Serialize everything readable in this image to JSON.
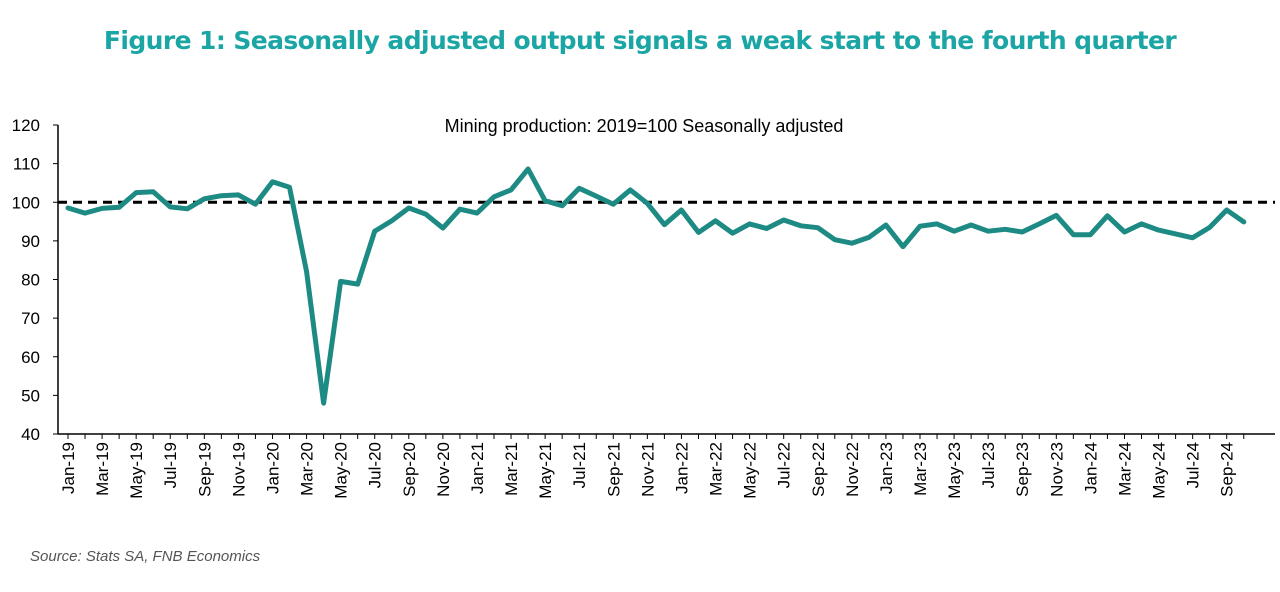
{
  "figure": {
    "title": "Figure 1: Seasonally adjusted output signals a weak start to the fourth quarter",
    "source": "Source: Stats SA, FNB Economics"
  },
  "colors": {
    "title": "#1ba5a5",
    "series": "#1e8a84",
    "reference": "#000000"
  },
  "chart_data": {
    "type": "line",
    "title": "Mining production: 2019=100 Seasonally adjusted",
    "xlabel": "",
    "ylabel": "",
    "ylim": [
      40,
      120
    ],
    "yticks": [
      40,
      50,
      60,
      70,
      80,
      90,
      100,
      110,
      120
    ],
    "grid": false,
    "legend": "none",
    "x": [
      "Jan-19",
      "Feb-19",
      "Mar-19",
      "Apr-19",
      "May-19",
      "Jun-19",
      "Jul-19",
      "Aug-19",
      "Sep-19",
      "Oct-19",
      "Nov-19",
      "Dec-19",
      "Jan-20",
      "Feb-20",
      "Mar-20",
      "Apr-20",
      "May-20",
      "Jun-20",
      "Jul-20",
      "Aug-20",
      "Sep-20",
      "Oct-20",
      "Nov-20",
      "Dec-20",
      "Jan-21",
      "Feb-21",
      "Mar-21",
      "Apr-21",
      "May-21",
      "Jun-21",
      "Jul-21",
      "Aug-21",
      "Sep-21",
      "Oct-21",
      "Nov-21",
      "Dec-21",
      "Jan-22",
      "Feb-22",
      "Mar-22",
      "Apr-22",
      "May-22",
      "Jun-22",
      "Jul-22",
      "Aug-22",
      "Sep-22",
      "Oct-22",
      "Nov-22",
      "Dec-22",
      "Jan-23",
      "Feb-23",
      "Mar-23",
      "Apr-23",
      "May-23",
      "Jun-23",
      "Jul-23",
      "Aug-23",
      "Sep-23",
      "Oct-23",
      "Nov-23",
      "Dec-23",
      "Jan-24",
      "Feb-24",
      "Mar-24",
      "Apr-24",
      "May-24",
      "Jun-24",
      "Jul-24",
      "Aug-24",
      "Sep-24",
      "Oct-24"
    ],
    "xtick_labels": [
      "Jan-19",
      "Mar-19",
      "May-19",
      "Jul-19",
      "Sep-19",
      "Nov-19",
      "Jan-20",
      "Mar-20",
      "May-20",
      "Jul-20",
      "Sep-20",
      "Nov-20",
      "Jan-21",
      "Mar-21",
      "May-21",
      "Jul-21",
      "Sep-21",
      "Nov-21",
      "Jan-22",
      "Mar-22",
      "May-22",
      "Jul-22",
      "Sep-22",
      "Nov-22",
      "Jan-23",
      "Mar-23",
      "May-23",
      "Jul-23",
      "Sep-23",
      "Nov-23",
      "Jan-24",
      "Mar-24",
      "May-24",
      "Jul-24",
      "Sep-24"
    ],
    "series": [
      {
        "values": [
          98.5,
          97.2,
          98.4,
          98.7,
          102.5,
          102.7,
          98.8,
          98.3,
          100.9,
          101.7,
          101.9,
          99.5,
          105.3,
          103.9,
          82.0,
          48.0,
          79.5,
          78.8,
          92.5,
          95.2,
          98.5,
          96.9,
          93.3,
          98.2,
          97.2,
          101.4,
          103.2,
          108.6,
          100.4,
          99.1,
          103.6,
          101.6,
          99.5,
          103.2,
          99.7,
          94.2,
          98.0,
          92.2,
          95.2,
          92.0,
          94.4,
          93.2,
          95.4,
          93.9,
          93.4,
          90.3,
          89.4,
          90.9,
          94.1,
          88.5,
          93.8,
          94.4,
          92.5,
          94.1,
          92.5,
          93.0,
          92.3,
          94.4,
          96.6,
          91.6,
          91.6,
          96.5,
          92.3,
          94.4,
          92.8,
          91.8,
          90.8,
          93.5,
          98.0,
          94.9
        ]
      }
    ],
    "reference_line": {
      "y": 100,
      "style": "dashed"
    }
  }
}
